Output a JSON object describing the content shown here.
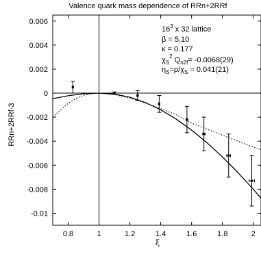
{
  "chart_data": {
    "type": "scatter",
    "title": "Valence quark mass dependence of RRn+2RRf",
    "xlabel": "ξ",
    "ylabel": "RRn+2RRf-3",
    "xlim": [
      0.7,
      2.05
    ],
    "ylim": [
      -0.011,
      0.0065
    ],
    "x_ticks": [
      0.8,
      1,
      1.2,
      1.4,
      1.6,
      1.8,
      2
    ],
    "x_tick_labels": [
      "0.8",
      "1",
      "1.2",
      "1.4",
      "1.6",
      "1.8",
      "2"
    ],
    "y_ticks": [
      0.006,
      0.004,
      0.002,
      0,
      -0.002,
      -0.004,
      -0.006,
      -0.008,
      -0.01
    ],
    "y_tick_labels": [
      "0.006",
      "0.004",
      "0.002",
      "0",
      "-0.002",
      "-0.004",
      "-0.006",
      "-0.008",
      "-0.01"
    ],
    "reference_lines": {
      "horizontal_y": 0,
      "vertical_x": 1
    },
    "points": [
      {
        "x": 0.83,
        "y": 0.0005,
        "yerr": 0.0005,
        "xerr": 0.004
      },
      {
        "x": 1.1,
        "y": 0.0,
        "yerr": 0.0001,
        "xerr": 0.004
      },
      {
        "x": 1.25,
        "y": -0.0002,
        "yerr": 0.0004,
        "xerr": 0.005
      },
      {
        "x": 1.39,
        "y": -0.0009,
        "yerr": 0.0007,
        "xerr": 0.005
      },
      {
        "x": 1.57,
        "y": -0.0022,
        "yerr": 0.0011,
        "xerr": 0.006
      },
      {
        "x": 1.68,
        "y": -0.0034,
        "yerr": 0.0014,
        "xerr": 0.008
      },
      {
        "x": 1.84,
        "y": -0.0052,
        "yerr": 0.0018,
        "xerr": 0.012
      },
      {
        "x": 1.99,
        "y": -0.0073,
        "yerr": 0.0021,
        "xerr": 0.018
      }
    ],
    "curves": [
      {
        "style": "solid",
        "x": [
          0.7,
          0.8,
          0.9,
          1.0,
          1.1,
          1.2,
          1.3,
          1.4,
          1.5,
          1.6,
          1.7,
          1.8,
          1.9,
          2.0,
          2.05
        ],
        "y": [
          -0.00046,
          -0.00022,
          -5e-05,
          0.0,
          -8e-05,
          -0.00034,
          -0.00078,
          -0.00139,
          -0.00216,
          -0.00308,
          -0.00413,
          -0.00531,
          -0.00661,
          -0.008,
          -0.00875
        ]
      },
      {
        "style": "dotted",
        "x": [
          0.7,
          0.75,
          0.8,
          0.85,
          0.9,
          0.95,
          1.0,
          1.1,
          1.2,
          1.3,
          1.4,
          1.5,
          1.6,
          1.7,
          1.8,
          1.9,
          2.0,
          2.05
        ],
        "y": [
          -0.002,
          -0.0014,
          -0.00085,
          -0.00045,
          -0.00018,
          -4e-05,
          0.0,
          -0.00012,
          -0.0004,
          -0.00082,
          -0.0013,
          -0.0018,
          -0.0025,
          -0.003,
          -0.0035,
          -0.004,
          -0.0045,
          -0.0047
        ]
      }
    ]
  },
  "annotation": {
    "lattice": "16",
    "lattice_exp": "3",
    "lattice_rest": " x 32 lattice",
    "beta": "β = 5.10",
    "kappa": "κ = 0.177",
    "chi_pre": "χ",
    "chi_sub": "S",
    "chi_sup": "2",
    "q_pre": " Q",
    "q_sub": "n2f",
    "q_value": "=  -0.0068(29)",
    "eta_pre": "η",
    "eta_sub": "S",
    "eta_value": "=ρ/χ",
    "eta_sub2": "S",
    "eta_rest": " = 0.041(21)"
  }
}
